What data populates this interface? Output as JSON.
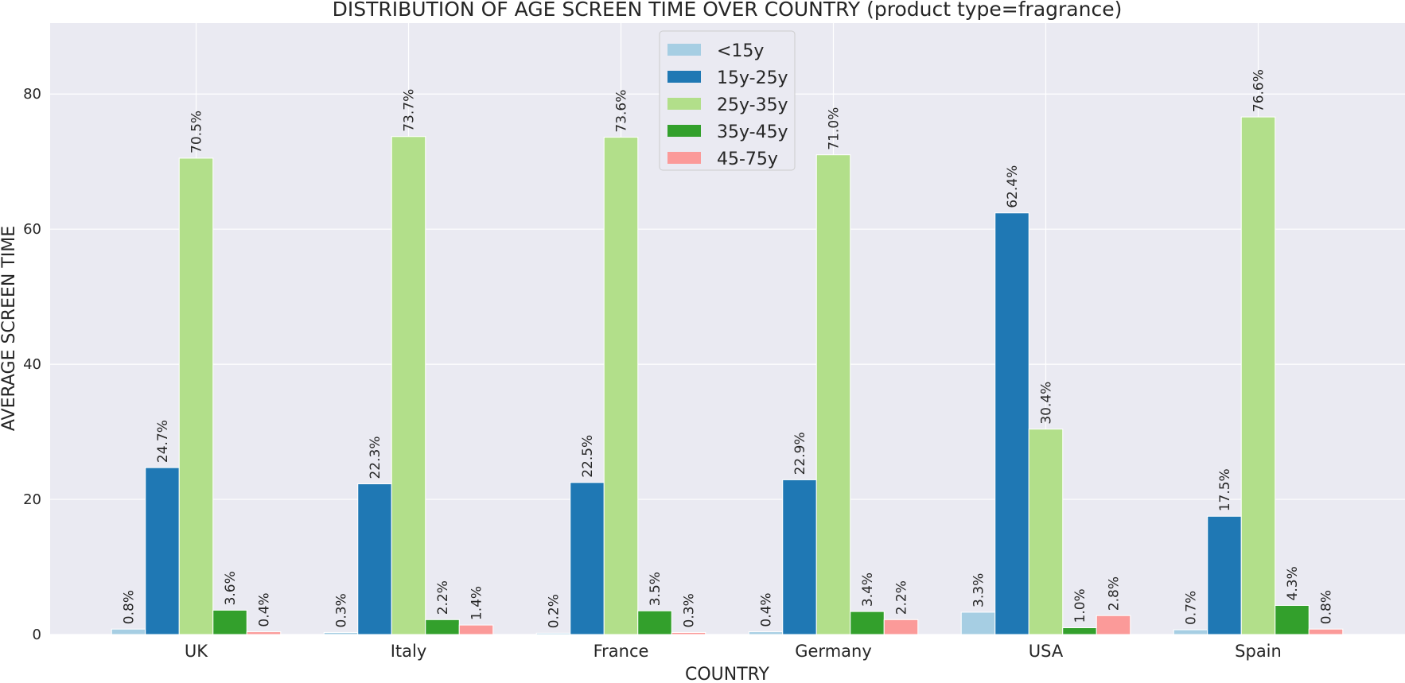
{
  "chart_data": {
    "type": "bar",
    "title": "DISTRIBUTION OF AGE SCREEN TIME OVER COUNTRY (product type=fragrance)",
    "xlabel": "COUNTRY",
    "ylabel": "AVERAGE SCREEN TIME",
    "categories": [
      "UK",
      "Italy",
      "France",
      "Germany",
      "USA",
      "Spain"
    ],
    "ylim": [
      0,
      90.5
    ],
    "yticks": [
      0,
      20,
      40,
      60,
      80
    ],
    "grid": true,
    "legend_position": "top-center",
    "background": "#eaeaf2",
    "series": [
      {
        "name": "<15y",
        "color": "#a6cee3",
        "values": [
          0.8,
          0.3,
          0.2,
          0.4,
          3.3,
          0.7
        ],
        "labels": [
          "0.8%",
          "0.3%",
          "0.2%",
          "0.4%",
          "3.3%",
          "0.7%"
        ]
      },
      {
        "name": "15y-25y",
        "color": "#1f78b4",
        "values": [
          24.7,
          22.3,
          22.5,
          22.9,
          62.4,
          17.5
        ],
        "labels": [
          "24.7%",
          "22.3%",
          "22.5%",
          "22.9%",
          "62.4%",
          "17.5%"
        ]
      },
      {
        "name": "25y-35y",
        "color": "#b2df8a",
        "values": [
          70.5,
          73.7,
          73.6,
          71.0,
          30.4,
          76.6
        ],
        "labels": [
          "70.5%",
          "73.7%",
          "73.6%",
          "71.0%",
          "30.4%",
          "76.6%"
        ]
      },
      {
        "name": "35y-45y",
        "color": "#33a02c",
        "values": [
          3.6,
          2.2,
          3.5,
          3.4,
          1.0,
          4.3
        ],
        "labels": [
          "3.6%",
          "2.2%",
          "3.5%",
          "3.4%",
          "1.0%",
          "4.3%"
        ]
      },
      {
        "name": "45-75y",
        "color": "#fb9a99",
        "values": [
          0.4,
          1.4,
          0.3,
          2.2,
          2.8,
          0.8
        ],
        "labels": [
          "0.4%",
          "1.4%",
          "0.3%",
          "2.2%",
          "2.8%",
          "0.8%"
        ]
      }
    ]
  }
}
